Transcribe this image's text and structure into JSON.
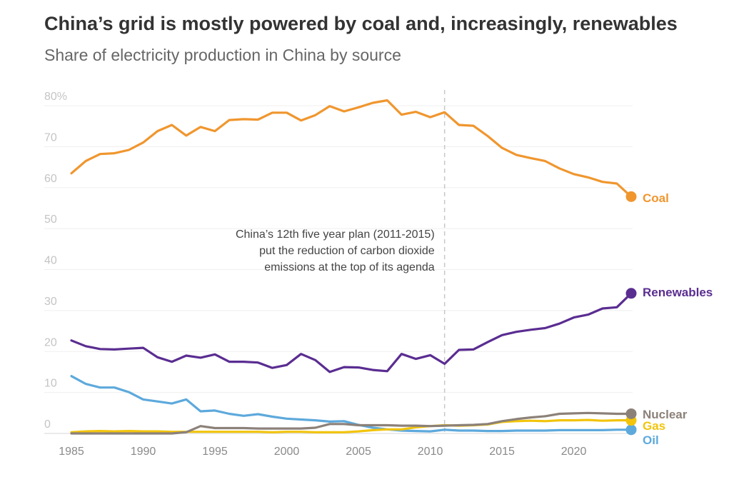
{
  "header": {
    "title": "China’s grid is mostly powered by coal and, increasingly, renewables",
    "subtitle": "Share of electricity production in China by source"
  },
  "annotation": {
    "year": 2011,
    "lines": [
      "China’s 12th five year plan (2011-2015)",
      "put the reduction of carbon dioxide",
      "emissions at the top of its agenda"
    ]
  },
  "chart_data": {
    "type": "line",
    "title": "China’s grid is mostly powered by coal and, increasingly, renewables",
    "subtitle": "Share of electricity production in China by source",
    "xlabel": "",
    "ylabel": "",
    "xlim": [
      1985,
      2024
    ],
    "ylim": [
      0,
      80
    ],
    "x_ticks": [
      1985,
      1990,
      1995,
      2000,
      2005,
      2010,
      2015,
      2020
    ],
    "y_ticks": [
      {
        "value": 0,
        "label": "0"
      },
      {
        "value": 10,
        "label": "10"
      },
      {
        "value": 20,
        "label": "20"
      },
      {
        "value": 30,
        "label": "30"
      },
      {
        "value": 40,
        "label": "40"
      },
      {
        "value": 50,
        "label": "50"
      },
      {
        "value": 60,
        "label": "60"
      },
      {
        "value": 70,
        "label": "70"
      },
      {
        "value": 80,
        "label": "80%"
      }
    ],
    "grid": true,
    "x": [
      1985,
      1986,
      1987,
      1988,
      1989,
      1990,
      1991,
      1992,
      1993,
      1994,
      1995,
      1996,
      1997,
      1998,
      1999,
      2000,
      2001,
      2002,
      2003,
      2004,
      2005,
      2006,
      2007,
      2008,
      2009,
      2010,
      2011,
      2012,
      2013,
      2014,
      2015,
      2016,
      2017,
      2018,
      2019,
      2020,
      2021,
      2022,
      2023,
      2024
    ],
    "series": [
      {
        "name": "Coal",
        "color": "#f0962e",
        "values": [
          63.5,
          66.5,
          68.2,
          68.4,
          69.2,
          71,
          73.8,
          75.3,
          72.7,
          74.8,
          73.8,
          76.5,
          76.7,
          76.6,
          78.3,
          78.3,
          76.4,
          77.7,
          79.9,
          78.6,
          79.6,
          80.7,
          81.3,
          77.8,
          78.5,
          77.2,
          78.4,
          75.3,
          75.1,
          72.6,
          69.7,
          68,
          67.2,
          66.5,
          64.7,
          63.3,
          62.5,
          61.4,
          61,
          57.8
        ]
      },
      {
        "name": "Renewables",
        "color": "#5a2d91",
        "values": [
          22.7,
          21.3,
          20.6,
          20.5,
          20.7,
          20.9,
          18.6,
          17.5,
          19,
          18.5,
          19.3,
          17.5,
          17.5,
          17.3,
          16,
          16.7,
          19.4,
          17.9,
          15,
          16.2,
          16.1,
          15.5,
          15.2,
          19.4,
          18.2,
          19.1,
          17,
          20.4,
          20.5,
          22.3,
          24,
          24.8,
          25.3,
          25.7,
          26.8,
          28.3,
          29,
          30.5,
          30.8,
          34.2
        ]
      },
      {
        "name": "Nuclear",
        "color": "#8c8179",
        "values": [
          0,
          0,
          0,
          0,
          0,
          0,
          0,
          0,
          0.3,
          1.8,
          1.3,
          1.3,
          1.3,
          1.2,
          1.2,
          1.2,
          1.2,
          1.4,
          2.3,
          2.3,
          2,
          2,
          2,
          1.9,
          1.9,
          1.8,
          1.9,
          2,
          2.1,
          2.3,
          3,
          3.5,
          3.9,
          4.2,
          4.8,
          4.9,
          5,
          4.9,
          4.8,
          4.8
        ]
      },
      {
        "name": "Gas",
        "color": "#f2c40c",
        "values": [
          0.3,
          0.5,
          0.6,
          0.5,
          0.6,
          0.5,
          0.5,
          0.4,
          0.4,
          0.4,
          0.4,
          0.4,
          0.4,
          0.4,
          0.3,
          0.4,
          0.4,
          0.3,
          0.3,
          0.3,
          0.5,
          0.8,
          1,
          1,
          1.5,
          1.8,
          2,
          1.9,
          2,
          2.2,
          2.8,
          3,
          3.1,
          3,
          3.2,
          3.2,
          3.3,
          3.1,
          3.2,
          3.2
        ]
      },
      {
        "name": "Oil",
        "color": "#5da9dc",
        "values": [
          14,
          12.1,
          11.2,
          11.2,
          10.1,
          8.3,
          7.8,
          7.3,
          8.3,
          5.4,
          5.6,
          4.8,
          4.3,
          4.7,
          4.1,
          3.6,
          3.4,
          3.2,
          2.9,
          3,
          2.1,
          1.4,
          1,
          0.7,
          0.6,
          0.5,
          0.9,
          0.7,
          0.7,
          0.6,
          0.6,
          0.7,
          0.7,
          0.7,
          0.8,
          0.8,
          0.8,
          0.8,
          0.9,
          0.9
        ]
      }
    ],
    "legend": "end-of-line labels"
  }
}
